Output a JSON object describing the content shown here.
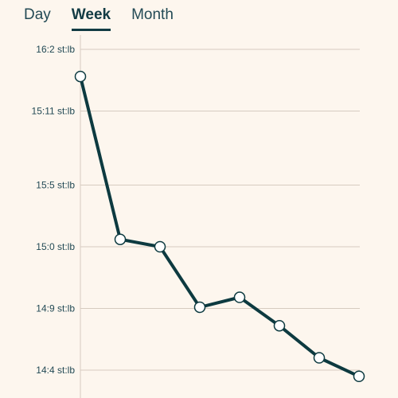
{
  "tabs": [
    {
      "label": "Day",
      "active": false
    },
    {
      "label": "Week",
      "active": true
    },
    {
      "label": "Month",
      "active": false
    }
  ],
  "colors": {
    "background": "#fdf6ee",
    "line": "#0d3a40",
    "grid": "#d6cbc0",
    "text": "#234a55"
  },
  "chart_data": {
    "type": "line",
    "unit": "st:lb",
    "y_ticks": [
      "16:2 st:lb",
      "15:11 st:lb",
      "15:5 st:lb",
      "15:0 st:lb",
      "14:9 st:lb",
      "14:4 st:lb"
    ],
    "y_tick_values": [
      226,
      221,
      215,
      210,
      205,
      200
    ],
    "ylim": [
      198.5,
      226
    ],
    "x": [
      1,
      2,
      3,
      4,
      5,
      6,
      7,
      8
    ],
    "values": [
      223.8,
      210.6,
      210.0,
      205.1,
      205.9,
      203.6,
      201.0,
      199.5
    ],
    "grid": true
  }
}
